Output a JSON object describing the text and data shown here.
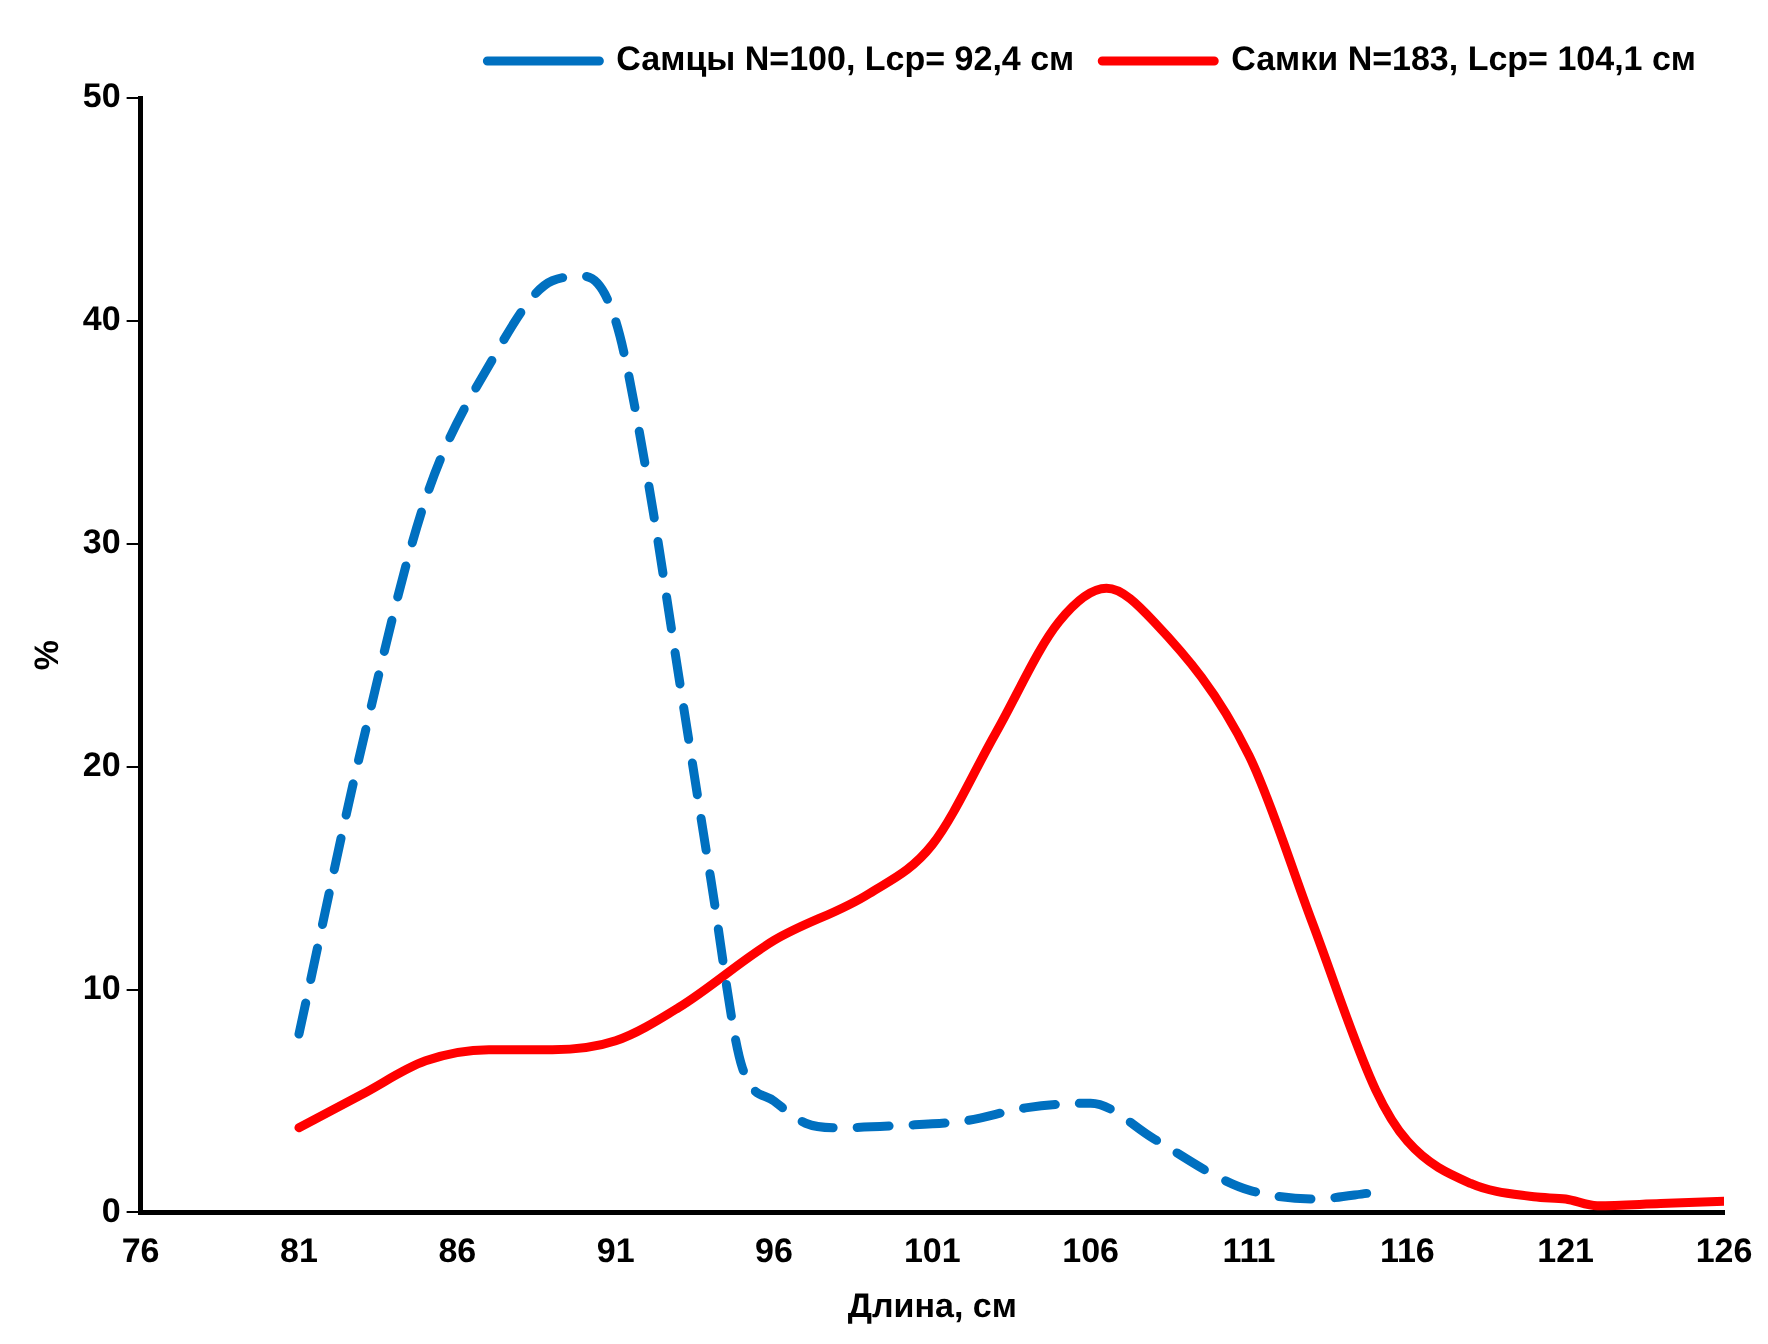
{
  "chart_data": {
    "type": "line",
    "xlabel": "Длина, см",
    "ylabel": "%",
    "xlim": [
      76,
      126
    ],
    "xticks": [
      76,
      81,
      86,
      91,
      96,
      101,
      106,
      111,
      116,
      121,
      126
    ],
    "ylim": [
      0,
      50
    ],
    "yticks": [
      0,
      10,
      20,
      30,
      40,
      50
    ],
    "grid": false,
    "legend": "top right",
    "marker": "none",
    "series": [
      {
        "name": "Самцы N=100, Lср= 92,4 см",
        "color": "#0070c0",
        "line_style": "dashed",
        "x": [
          81,
          83,
          85,
          87,
          89,
          90,
          91,
          92,
          93,
          94,
          95,
          96,
          97,
          98,
          100,
          102,
          104,
          106,
          108,
          110,
          111,
          113,
          115
        ],
        "values": [
          8,
          21,
          32,
          38,
          41.8,
          42,
          40,
          33,
          24,
          15,
          6.5,
          5,
          4,
          3.8,
          3.9,
          4.1,
          4.7,
          4.9,
          3.3,
          1.6,
          1,
          0.6,
          0.9
        ]
      },
      {
        "name": "Самки N=183, Lср= 104,1 см",
        "color": "#ff0000",
        "line_style": "solid",
        "x": [
          81,
          83,
          85,
          87,
          89,
          91,
          93,
          96,
          99,
          101,
          103,
          105,
          106.5,
          108,
          111,
          113,
          115,
          116,
          118,
          120,
          121,
          122,
          124,
          126
        ],
        "values": [
          3.8,
          5.3,
          6.8,
          7.3,
          7.3,
          7.7,
          9.2,
          12.2,
          14.3,
          16.5,
          21.5,
          26.5,
          28,
          26.5,
          20.5,
          13,
          5.5,
          3.2,
          1.3,
          0.7,
          0.6,
          0.3,
          0.4,
          0.5
        ]
      }
    ]
  }
}
